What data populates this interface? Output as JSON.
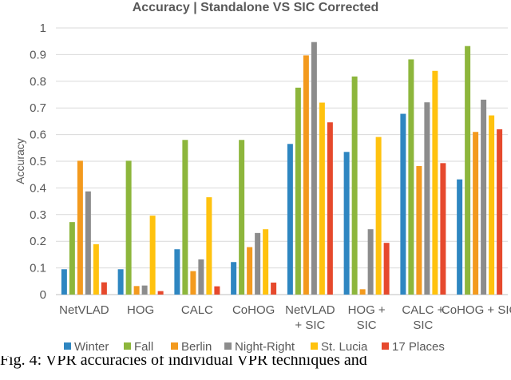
{
  "chart_data": {
    "type": "bar",
    "title": "Accuracy | Standalone VS SIC Corrected",
    "ylabel": "Accuracy",
    "xlabel": "",
    "ylim": [
      0,
      1
    ],
    "yticks": [
      "0",
      "0.1",
      "0.2",
      "0.3",
      "0.4",
      "0.5",
      "0.6",
      "0.7",
      "0.8",
      "0.9",
      "1"
    ],
    "grid": "horizontal",
    "legend_position": "bottom",
    "categories": [
      [
        "NetVLAD"
      ],
      [
        "HOG"
      ],
      [
        "CALC"
      ],
      [
        "CoHOG"
      ],
      [
        "NetVLAD",
        "+ SIC"
      ],
      [
        "HOG +",
        "SIC"
      ],
      [
        "CALC +",
        "SIC"
      ],
      [
        "CoHOG + SIC"
      ]
    ],
    "series": [
      {
        "name": "Winter",
        "color": "#2E86C1",
        "values": [
          0.095,
          0.095,
          0.17,
          0.122,
          0.565,
          0.535,
          0.678,
          0.432
        ]
      },
      {
        "name": "Fall",
        "color": "#8DB63C",
        "values": [
          0.272,
          0.502,
          0.58,
          0.58,
          0.776,
          0.818,
          0.882,
          0.932
        ]
      },
      {
        "name": "Berlin",
        "color": "#F39A1E",
        "values": [
          0.502,
          0.032,
          0.088,
          0.178,
          0.897,
          0.02,
          0.482,
          0.61
        ]
      },
      {
        "name": "Night-Right",
        "color": "#8C8C8C",
        "values": [
          0.387,
          0.034,
          0.132,
          0.231,
          0.947,
          0.245,
          0.721,
          0.731
        ]
      },
      {
        "name": "St. Lucia",
        "color": "#FFC20E",
        "values": [
          0.189,
          0.296,
          0.365,
          0.245,
          0.72,
          0.591,
          0.839,
          0.672
        ]
      },
      {
        "name": "17 Places",
        "color": "#E6492D",
        "values": [
          0.046,
          0.013,
          0.031,
          0.045,
          0.646,
          0.194,
          0.493,
          0.62
        ]
      }
    ]
  },
  "caption": "Fig. 4: VPR accuracies of individual VPR techniques and"
}
